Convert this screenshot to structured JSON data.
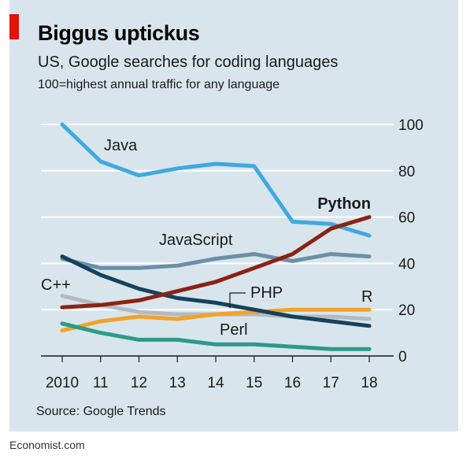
{
  "header": {
    "title": "Biggus uptickus",
    "subtitle": "US, Google searches for coding languages",
    "note": "100=highest annual traffic for any language"
  },
  "footer": {
    "source": "Source: Google Trends",
    "credit": "Economist.com"
  },
  "colors": {
    "accent": "#e3120b",
    "background": "#d9e5ec",
    "java": "#3fa9e0",
    "python": "#8b2214",
    "javascript": "#6b8fa8",
    "cpp": "#b3bbc1",
    "php": "#14425c",
    "r": "#f2a22a",
    "perl": "#2c9a87"
  },
  "chart_data": {
    "type": "line",
    "x": [
      2010,
      2011,
      2012,
      2013,
      2014,
      2015,
      2016,
      2017,
      2018
    ],
    "x_tick_labels": [
      "2010",
      "11",
      "12",
      "13",
      "14",
      "15",
      "16",
      "17",
      "18"
    ],
    "y_ticks": [
      0,
      20,
      40,
      60,
      80,
      100
    ],
    "ylim": [
      0,
      100
    ],
    "y_axis_side": "right",
    "grid": true,
    "series": [
      {
        "key": "cpp",
        "name": "C++",
        "values": [
          26,
          22,
          19,
          18,
          18,
          18,
          17,
          17,
          16
        ]
      },
      {
        "key": "r",
        "name": "R",
        "values": [
          11,
          15,
          17,
          16,
          18,
          19,
          20,
          20,
          20
        ]
      },
      {
        "key": "perl",
        "name": "Perl",
        "values": [
          14,
          10,
          7,
          7,
          5,
          5,
          4,
          3,
          3
        ]
      },
      {
        "key": "javascript",
        "name": "JavaScript",
        "values": [
          42,
          38,
          38,
          39,
          42,
          44,
          41,
          44,
          43
        ]
      },
      {
        "key": "php",
        "name": "PHP",
        "values": [
          43,
          35,
          29,
          25,
          23,
          20,
          17,
          15,
          13
        ]
      },
      {
        "key": "java",
        "name": "Java",
        "values": [
          100,
          84,
          78,
          81,
          83,
          82,
          58,
          57,
          52
        ]
      },
      {
        "key": "python",
        "name": "Python",
        "values": [
          21,
          22,
          24,
          28,
          32,
          38,
          44,
          55,
          60
        ]
      }
    ]
  }
}
